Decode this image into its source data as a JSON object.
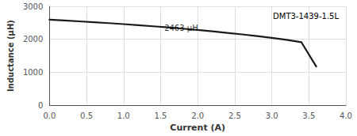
{
  "chart_data": {
    "type": "line",
    "title": "DMT3-1439-1.5L",
    "xlabel": "Current (A)",
    "ylabel": "Inductance (μH)",
    "annotations": [
      {
        "text": "2463 μH",
        "x": 1.55,
        "y": 2340
      }
    ],
    "x": [
      0.0,
      0.2,
      0.4,
      0.6,
      0.8,
      1.0,
      1.2,
      1.4,
      1.6,
      1.8,
      2.0,
      2.2,
      2.4,
      2.6,
      2.8,
      3.0,
      3.2,
      3.4,
      3.6
    ],
    "values": [
      2595,
      2570,
      2545,
      2518,
      2490,
      2460,
      2428,
      2395,
      2360,
      2322,
      2282,
      2240,
      2195,
      2148,
      2098,
      2043,
      1983,
      1910,
      1175
    ],
    "color": "#1a1a1a",
    "xlim": [
      0,
      4.0
    ],
    "ylim": [
      0,
      3000
    ],
    "xticks": [
      {
        "value": 0,
        "label": "0.0"
      },
      0.5,
      {
        "value": 1,
        "label": "1.0"
      },
      1.5,
      {
        "value": 2,
        "label": "2.0"
      },
      2.5,
      {
        "value": 3,
        "label": "3.0"
      },
      3.5,
      {
        "value": 4,
        "label": "4.0"
      }
    ],
    "yticks": [
      0,
      1000,
      2000,
      3000
    ],
    "grid": true
  }
}
